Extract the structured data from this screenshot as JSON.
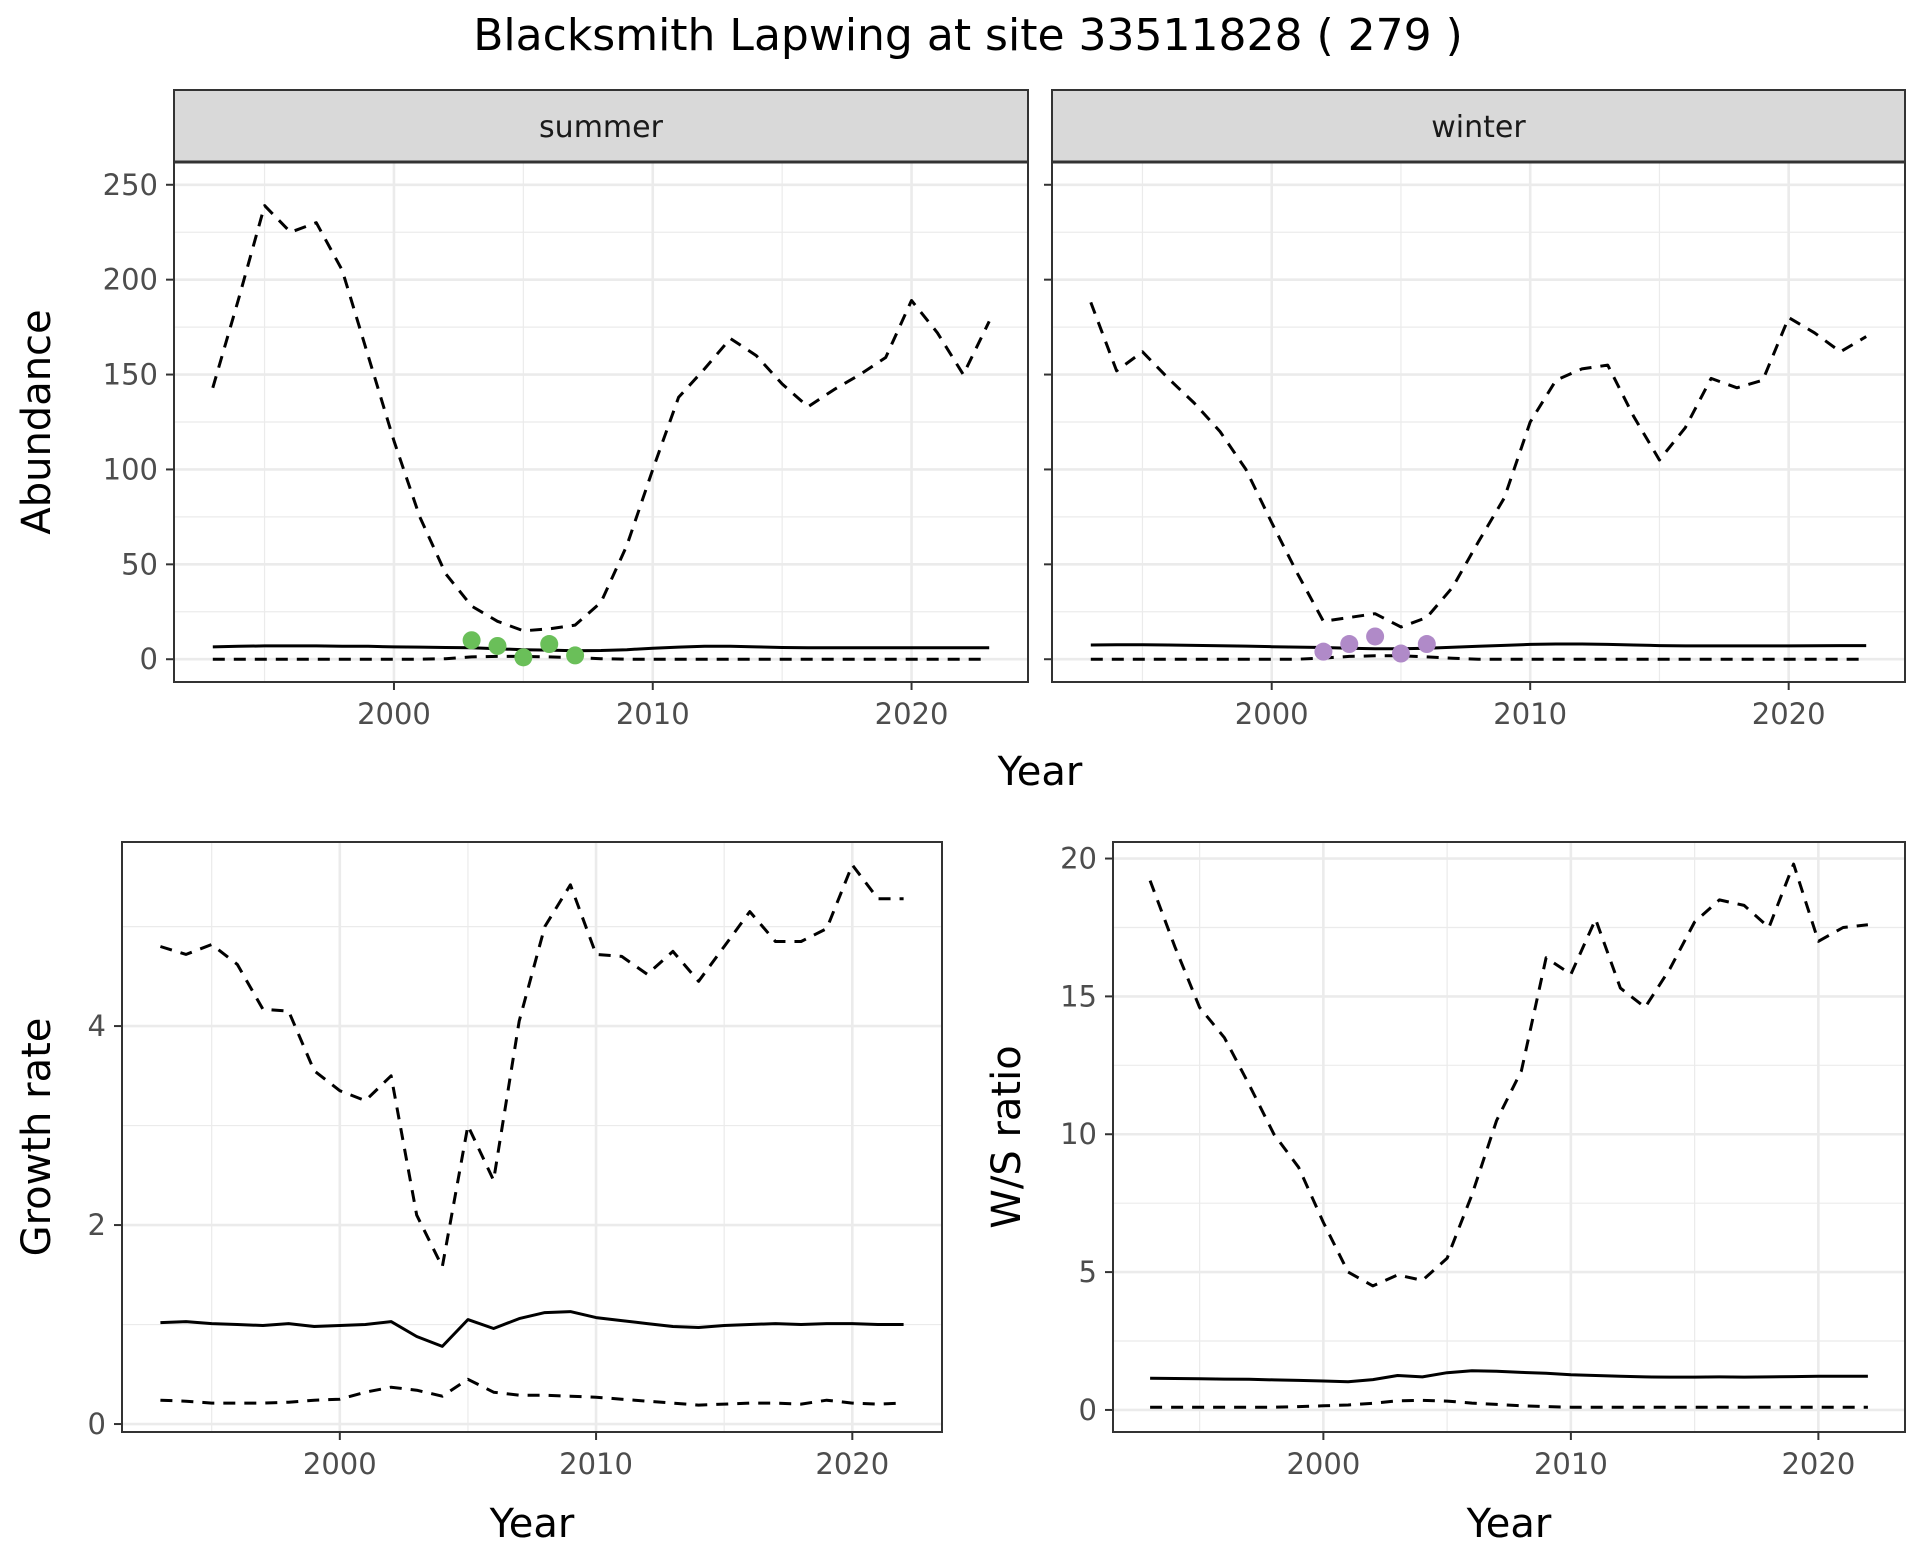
{
  "title": "Blacksmith Lapwing at site 33511828 ( 279 )",
  "colors": {
    "summer_points": "#6abf59",
    "winter_points": "#b08ac8",
    "lines": "#000000",
    "strip_fill": "#d9d9d9",
    "grid": "#ebebeb"
  },
  "chart_data": [
    {
      "id": "summer",
      "type": "line",
      "strip": "summer",
      "xlabel": "Year",
      "ylabel": "Abundance",
      "xlim": [
        1991.5,
        2024.5
      ],
      "ylim": [
        -12,
        262
      ],
      "xticks": [
        2000,
        2010,
        2020
      ],
      "yticks": [
        0,
        50,
        100,
        150,
        200,
        250
      ],
      "grid": true,
      "x": [
        1993,
        1994,
        1995,
        1996,
        1997,
        1998,
        1999,
        2000,
        2001,
        2002,
        2003,
        2004,
        2005,
        2006,
        2007,
        2008,
        2009,
        2010,
        2011,
        2012,
        2013,
        2014,
        2015,
        2016,
        2017,
        2018,
        2019,
        2020,
        2021,
        2022,
        2023
      ],
      "series": [
        {
          "style": "dashed",
          "values": [
            143,
            190,
            239,
            225,
            230,
            205,
            160,
            115,
            75,
            45,
            28,
            20,
            15,
            16,
            18,
            30,
            60,
            100,
            138,
            153,
            169,
            160,
            145,
            133,
            142,
            150,
            159,
            189,
            172,
            150,
            178
          ]
        },
        {
          "style": "solid",
          "values": [
            6.5,
            6.8,
            7,
            7,
            7,
            6.8,
            6.8,
            6.5,
            6.4,
            6.2,
            6,
            5.5,
            5,
            4.8,
            4.5,
            4.6,
            5,
            5.8,
            6.4,
            6.8,
            6.8,
            6.5,
            6.2,
            6,
            6,
            6,
            6,
            6,
            6,
            6,
            6
          ]
        },
        {
          "style": "dashed",
          "values": [
            0,
            0,
            0,
            0,
            0,
            0,
            0,
            0,
            0,
            0.3,
            1.2,
            1.5,
            1.5,
            1.2,
            0.8,
            0.3,
            0,
            0,
            0,
            0,
            0,
            0,
            0,
            0,
            0,
            0,
            0,
            0,
            0,
            0,
            0
          ]
        }
      ],
      "points": {
        "x": [
          2003,
          2004,
          2005,
          2006,
          2007
        ],
        "y": [
          10,
          7,
          1,
          8,
          2
        ]
      }
    },
    {
      "id": "winter",
      "type": "line",
      "strip": "winter",
      "xlabel": "Year",
      "ylabel": "",
      "xlim": [
        1991.5,
        2024.5
      ],
      "ylim": [
        -12,
        262
      ],
      "xticks": [
        2000,
        2010,
        2020
      ],
      "yticks": [
        0,
        50,
        100,
        150,
        200,
        250
      ],
      "grid": true,
      "x": [
        1993,
        1994,
        1995,
        1996,
        1997,
        1998,
        1999,
        2000,
        2001,
        2002,
        2003,
        2004,
        2005,
        2006,
        2007,
        2008,
        2009,
        2010,
        2011,
        2012,
        2013,
        2014,
        2015,
        2016,
        2017,
        2018,
        2019,
        2020,
        2021,
        2022,
        2023
      ],
      "series": [
        {
          "style": "dashed",
          "values": [
            188,
            152,
            162,
            148,
            135,
            120,
            100,
            72,
            45,
            20,
            22,
            24,
            17,
            22,
            38,
            62,
            85,
            125,
            147,
            153,
            155,
            128,
            105,
            122,
            148,
            143,
            147,
            180,
            172,
            162,
            170
          ]
        },
        {
          "style": "solid",
          "values": [
            7.5,
            7.6,
            7.6,
            7.5,
            7.3,
            7.1,
            6.9,
            6.6,
            6.4,
            6.2,
            5.8,
            5.5,
            5.5,
            5.8,
            6.3,
            6.8,
            7.3,
            7.8,
            8,
            8,
            7.8,
            7.5,
            7.2,
            7,
            7,
            7,
            7,
            7,
            7.1,
            7.2,
            7.2
          ]
        },
        {
          "style": "dashed",
          "values": [
            0,
            0,
            0,
            0,
            0,
            0,
            0,
            0,
            0,
            0.6,
            1.5,
            1.8,
            1.8,
            1.2,
            0.5,
            0,
            0,
            0,
            0,
            0,
            0,
            0,
            0,
            0,
            0,
            0,
            0,
            0,
            0,
            0,
            0
          ]
        }
      ],
      "points": {
        "x": [
          2002,
          2003,
          2004,
          2005,
          2006
        ],
        "y": [
          4,
          8,
          12,
          3,
          8
        ]
      }
    },
    {
      "id": "growth",
      "type": "line",
      "xlabel": "Year",
      "ylabel": "Growth rate",
      "xlim": [
        1991.5,
        2023.5
      ],
      "ylim": [
        -0.08,
        5.85
      ],
      "xticks": [
        2000,
        2010,
        2020
      ],
      "yticks": [
        0,
        2,
        4
      ],
      "grid": true,
      "x": [
        1993,
        1994,
        1995,
        1996,
        1997,
        1998,
        1999,
        2000,
        2001,
        2002,
        2003,
        2004,
        2005,
        2006,
        2007,
        2008,
        2009,
        2010,
        2011,
        2012,
        2013,
        2014,
        2015,
        2016,
        2017,
        2018,
        2019,
        2020,
        2021,
        2022
      ],
      "series": [
        {
          "style": "dashed",
          "values": [
            4.8,
            4.72,
            4.82,
            4.62,
            4.17,
            4.15,
            3.55,
            3.35,
            3.25,
            3.5,
            2.1,
            1.58,
            3.0,
            2.45,
            4.05,
            5.0,
            5.42,
            4.72,
            4.7,
            4.52,
            4.75,
            4.45,
            4.8,
            5.15,
            4.85,
            4.85,
            4.98,
            5.62,
            5.28,
            5.28
          ]
        },
        {
          "style": "solid",
          "values": [
            1.02,
            1.03,
            1.01,
            1.0,
            0.99,
            1.01,
            0.98,
            0.99,
            1.0,
            1.03,
            0.88,
            0.78,
            1.05,
            0.96,
            1.06,
            1.12,
            1.13,
            1.07,
            1.04,
            1.01,
            0.98,
            0.97,
            0.99,
            1.0,
            1.01,
            1.0,
            1.01,
            1.01,
            1.0,
            1.0
          ]
        },
        {
          "style": "dashed",
          "values": [
            0.24,
            0.23,
            0.21,
            0.21,
            0.21,
            0.22,
            0.24,
            0.25,
            0.32,
            0.37,
            0.34,
            0.28,
            0.45,
            0.32,
            0.29,
            0.29,
            0.28,
            0.27,
            0.25,
            0.23,
            0.21,
            0.19,
            0.2,
            0.21,
            0.21,
            0.2,
            0.24,
            0.21,
            0.2,
            0.21
          ]
        }
      ]
    },
    {
      "id": "ratio",
      "type": "line",
      "xlabel": "Year",
      "ylabel": "W/S ratio",
      "xlim": [
        1991.5,
        2023.5
      ],
      "ylim": [
        -0.8,
        20.6
      ],
      "xticks": [
        2000,
        2010,
        2020
      ],
      "yticks": [
        0,
        5,
        10,
        15,
        20
      ],
      "grid": true,
      "x": [
        1993,
        1994,
        1995,
        1996,
        1997,
        1998,
        1999,
        2000,
        2001,
        2002,
        2003,
        2004,
        2005,
        2006,
        2007,
        2008,
        2009,
        2010,
        2011,
        2012,
        2013,
        2014,
        2015,
        2016,
        2017,
        2018,
        2019,
        2020,
        2021,
        2022
      ],
      "series": [
        {
          "style": "dashed",
          "values": [
            19.2,
            16.8,
            14.6,
            13.5,
            11.8,
            10.0,
            8.8,
            6.8,
            5.0,
            4.5,
            4.9,
            4.7,
            5.5,
            7.8,
            10.5,
            12.3,
            16.4,
            15.8,
            17.8,
            15.3,
            14.6,
            16.0,
            17.7,
            18.5,
            18.3,
            17.5,
            19.8,
            17.0,
            17.5,
            17.6
          ]
        },
        {
          "style": "solid",
          "values": [
            1.15,
            1.14,
            1.13,
            1.12,
            1.11,
            1.09,
            1.07,
            1.05,
            1.02,
            1.1,
            1.25,
            1.2,
            1.35,
            1.42,
            1.4,
            1.36,
            1.33,
            1.28,
            1.25,
            1.22,
            1.2,
            1.19,
            1.19,
            1.2,
            1.19,
            1.2,
            1.21,
            1.22,
            1.22,
            1.22
          ]
        },
        {
          "style": "dashed",
          "values": [
            0.1,
            0.1,
            0.1,
            0.1,
            0.1,
            0.1,
            0.12,
            0.15,
            0.18,
            0.24,
            0.33,
            0.35,
            0.32,
            0.25,
            0.2,
            0.15,
            0.12,
            0.1,
            0.1,
            0.1,
            0.1,
            0.1,
            0.1,
            0.1,
            0.1,
            0.1,
            0.1,
            0.1,
            0.1,
            0.1
          ]
        }
      ]
    }
  ]
}
